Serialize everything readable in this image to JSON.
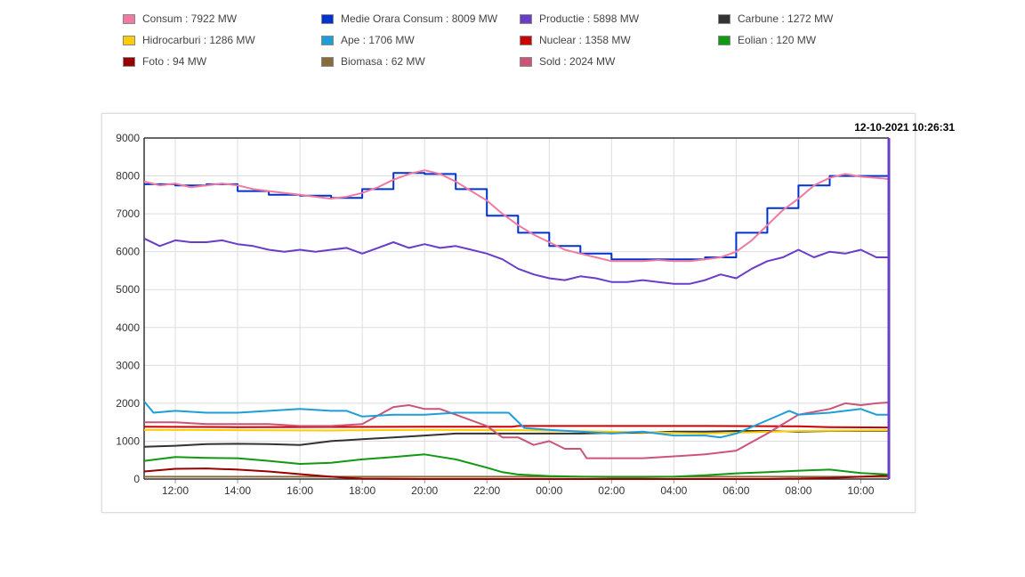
{
  "legend": [
    {
      "label": "Consum : 7922 MW",
      "color": "#f07aa0"
    },
    {
      "label": "Medie Orara Consum : 8009 MW",
      "color": "#0033cc"
    },
    {
      "label": "Productie : 5898 MW",
      "color": "#6a3dc8"
    },
    {
      "label": "Carbune : 1272 MW",
      "color": "#333333"
    },
    {
      "label": "Hidrocarburi : 1286 MW",
      "color": "#ffcc00"
    },
    {
      "label": "Ape : 1706 MW",
      "color": "#1e9ed8"
    },
    {
      "label": "Nuclear : 1358 MW",
      "color": "#cc0000"
    },
    {
      "label": "Eolian : 120 MW",
      "color": "#119911"
    },
    {
      "label": "Foto : 94 MW",
      "color": "#990000"
    },
    {
      "label": "Biomasa : 62 MW",
      "color": "#8b6a3e"
    },
    {
      "label": "Sold : 2024 MW",
      "color": "#cc5577"
    }
  ],
  "timestamp": "12-10-2021 10:26:31",
  "chart_data": {
    "type": "line",
    "xlabel": "",
    "ylabel": "",
    "ylim": [
      0,
      9000
    ],
    "xlim": [
      11,
      34.9
    ],
    "yticks": [
      "0",
      "1000",
      "2000",
      "3000",
      "4000",
      "5000",
      "6000",
      "7000",
      "8000",
      "9000"
    ],
    "xticks": [
      {
        "x": 12,
        "label": "12:00"
      },
      {
        "x": 14,
        "label": "14:00"
      },
      {
        "x": 16,
        "label": "16:00"
      },
      {
        "x": 18,
        "label": "18:00"
      },
      {
        "x": 20,
        "label": "20:00"
      },
      {
        "x": 22,
        "label": "22:00"
      },
      {
        "x": 24,
        "label": "00:00"
      },
      {
        "x": 26,
        "label": "02:00"
      },
      {
        "x": 28,
        "label": "04:00"
      },
      {
        "x": 30,
        "label": "06:00"
      },
      {
        "x": 32,
        "label": "08:00"
      },
      {
        "x": 34,
        "label": "10:00"
      }
    ],
    "grid": true,
    "legend_position": "top",
    "series": [
      {
        "name": "Consum : 7922 MW",
        "color": "#f07aa0",
        "step": false,
        "points": [
          [
            11,
            7850
          ],
          [
            11.5,
            7750
          ],
          [
            12,
            7800
          ],
          [
            12.5,
            7700
          ],
          [
            13,
            7750
          ],
          [
            13.5,
            7800
          ],
          [
            14,
            7750
          ],
          [
            14.5,
            7650
          ],
          [
            15,
            7600
          ],
          [
            15.5,
            7550
          ],
          [
            16,
            7500
          ],
          [
            16.5,
            7450
          ],
          [
            17,
            7400
          ],
          [
            17.5,
            7450
          ],
          [
            18,
            7550
          ],
          [
            18.5,
            7700
          ],
          [
            19,
            7900
          ],
          [
            19.5,
            8050
          ],
          [
            20,
            8150
          ],
          [
            20.5,
            8050
          ],
          [
            21,
            7850
          ],
          [
            21.5,
            7600
          ],
          [
            22,
            7350
          ],
          [
            22.5,
            7000
          ],
          [
            23,
            6700
          ],
          [
            23.5,
            6450
          ],
          [
            24,
            6250
          ],
          [
            24.5,
            6050
          ],
          [
            25,
            5950
          ],
          [
            25.5,
            5850
          ],
          [
            26,
            5750
          ],
          [
            26.5,
            5750
          ],
          [
            27,
            5750
          ],
          [
            27.5,
            5780
          ],
          [
            28,
            5750
          ],
          [
            28.5,
            5750
          ],
          [
            29,
            5800
          ],
          [
            29.5,
            5850
          ],
          [
            30,
            6000
          ],
          [
            30.5,
            6300
          ],
          [
            31,
            6700
          ],
          [
            31.5,
            7100
          ],
          [
            32,
            7400
          ],
          [
            32.5,
            7750
          ],
          [
            33,
            7950
          ],
          [
            33.5,
            8050
          ],
          [
            34,
            7980
          ],
          [
            34.5,
            7950
          ],
          [
            34.9,
            7920
          ]
        ]
      },
      {
        "name": "Medie Orara Consum : 8009 MW",
        "color": "#0033cc",
        "step": true,
        "points": [
          [
            11,
            7780
          ],
          [
            12,
            7750
          ],
          [
            13,
            7780
          ],
          [
            14,
            7600
          ],
          [
            15,
            7500
          ],
          [
            16,
            7480
          ],
          [
            17,
            7420
          ],
          [
            18,
            7650
          ],
          [
            19,
            8080
          ],
          [
            20,
            8050
          ],
          [
            21,
            7650
          ],
          [
            22,
            6950
          ],
          [
            23,
            6500
          ],
          [
            24,
            6150
          ],
          [
            25,
            5950
          ],
          [
            26,
            5800
          ],
          [
            27,
            5800
          ],
          [
            28,
            5800
          ],
          [
            29,
            5850
          ],
          [
            30,
            6500
          ],
          [
            31,
            7150
          ],
          [
            32,
            7750
          ],
          [
            33,
            8000
          ],
          [
            34,
            8000
          ],
          [
            34.9,
            8000
          ]
        ]
      },
      {
        "name": "Productie : 5898 MW",
        "color": "#6a3dc8",
        "step": false,
        "points": [
          [
            11,
            6350
          ],
          [
            11.5,
            6150
          ],
          [
            12,
            6300
          ],
          [
            12.5,
            6250
          ],
          [
            13,
            6250
          ],
          [
            13.5,
            6300
          ],
          [
            14,
            6200
          ],
          [
            14.5,
            6150
          ],
          [
            15,
            6050
          ],
          [
            15.5,
            6000
          ],
          [
            16,
            6050
          ],
          [
            16.5,
            6000
          ],
          [
            17,
            6050
          ],
          [
            17.5,
            6100
          ],
          [
            18,
            5950
          ],
          [
            18.5,
            6100
          ],
          [
            19,
            6250
          ],
          [
            19.5,
            6100
          ],
          [
            20,
            6200
          ],
          [
            20.5,
            6100
          ],
          [
            21,
            6150
          ],
          [
            21.5,
            6050
          ],
          [
            22,
            5950
          ],
          [
            22.5,
            5800
          ],
          [
            23,
            5550
          ],
          [
            23.5,
            5400
          ],
          [
            24,
            5300
          ],
          [
            24.5,
            5250
          ],
          [
            25,
            5350
          ],
          [
            25.5,
            5300
          ],
          [
            26,
            5200
          ],
          [
            26.5,
            5200
          ],
          [
            27,
            5250
          ],
          [
            27.5,
            5200
          ],
          [
            28,
            5150
          ],
          [
            28.5,
            5150
          ],
          [
            29,
            5250
          ],
          [
            29.5,
            5400
          ],
          [
            30,
            5300
          ],
          [
            30.5,
            5550
          ],
          [
            31,
            5750
          ],
          [
            31.5,
            5850
          ],
          [
            32,
            6050
          ],
          [
            32.5,
            5850
          ],
          [
            33,
            6000
          ],
          [
            33.5,
            5950
          ],
          [
            34,
            6050
          ],
          [
            34.5,
            5850
          ],
          [
            34.9,
            5850
          ]
        ]
      },
      {
        "name": "Ape : 1706 MW",
        "color": "#1e9ed8",
        "step": false,
        "points": [
          [
            11,
            2050
          ],
          [
            11.3,
            1750
          ],
          [
            12,
            1800
          ],
          [
            13,
            1750
          ],
          [
            14,
            1750
          ],
          [
            15,
            1800
          ],
          [
            16,
            1850
          ],
          [
            17,
            1800
          ],
          [
            17.5,
            1800
          ],
          [
            18,
            1650
          ],
          [
            19,
            1700
          ],
          [
            20,
            1700
          ],
          [
            21,
            1750
          ],
          [
            22,
            1750
          ],
          [
            22.7,
            1750
          ],
          [
            23.2,
            1350
          ],
          [
            24,
            1300
          ],
          [
            25,
            1250
          ],
          [
            26,
            1200
          ],
          [
            27,
            1250
          ],
          [
            28,
            1150
          ],
          [
            29,
            1150
          ],
          [
            29.5,
            1100
          ],
          [
            30,
            1200
          ],
          [
            31,
            1550
          ],
          [
            31.7,
            1800
          ],
          [
            32,
            1700
          ],
          [
            33,
            1750
          ],
          [
            34,
            1850
          ],
          [
            34.5,
            1700
          ],
          [
            34.9,
            1700
          ]
        ]
      },
      {
        "name": "Sold : 2024 MW",
        "color": "#cc5577",
        "step": false,
        "points": [
          [
            11,
            1500
          ],
          [
            12,
            1500
          ],
          [
            13,
            1450
          ],
          [
            14,
            1450
          ],
          [
            15,
            1450
          ],
          [
            16,
            1400
          ],
          [
            17,
            1400
          ],
          [
            18,
            1450
          ],
          [
            19,
            1900
          ],
          [
            19.5,
            1950
          ],
          [
            20,
            1850
          ],
          [
            20.5,
            1850
          ],
          [
            21,
            1700
          ],
          [
            22,
            1400
          ],
          [
            22.5,
            1100
          ],
          [
            23,
            1100
          ],
          [
            23.5,
            900
          ],
          [
            24,
            1000
          ],
          [
            24.5,
            800
          ],
          [
            25,
            800
          ],
          [
            25.2,
            550
          ],
          [
            26,
            550
          ],
          [
            27,
            550
          ],
          [
            28,
            600
          ],
          [
            29,
            650
          ],
          [
            30,
            750
          ],
          [
            31,
            1200
          ],
          [
            32,
            1700
          ],
          [
            33,
            1850
          ],
          [
            33.5,
            2000
          ],
          [
            34,
            1950
          ],
          [
            34.5,
            2000
          ],
          [
            34.9,
            2020
          ]
        ]
      },
      {
        "name": "Nuclear : 1358 MW",
        "color": "#cc0000",
        "step": false,
        "points": [
          [
            11,
            1380
          ],
          [
            14,
            1370
          ],
          [
            17,
            1375
          ],
          [
            20,
            1380
          ],
          [
            22.8,
            1380
          ],
          [
            23,
            1400
          ],
          [
            26,
            1400
          ],
          [
            29,
            1400
          ],
          [
            32,
            1390
          ],
          [
            33,
            1370
          ],
          [
            34.9,
            1360
          ]
        ]
      },
      {
        "name": "Hidrocarburi : 1286 MW",
        "color": "#ffcc00",
        "step": false,
        "points": [
          [
            11,
            1300
          ],
          [
            14,
            1290
          ],
          [
            17,
            1280
          ],
          [
            20,
            1300
          ],
          [
            23,
            1290
          ],
          [
            26,
            1250
          ],
          [
            29,
            1200
          ],
          [
            32,
            1270
          ],
          [
            34.9,
            1286
          ]
        ]
      },
      {
        "name": "Carbune : 1272 MW",
        "color": "#333333",
        "step": false,
        "points": [
          [
            11,
            850
          ],
          [
            12,
            880
          ],
          [
            13,
            920
          ],
          [
            14,
            930
          ],
          [
            15,
            920
          ],
          [
            16,
            900
          ],
          [
            17,
            1000
          ],
          [
            18,
            1050
          ],
          [
            19,
            1100
          ],
          [
            20,
            1150
          ],
          [
            21,
            1200
          ],
          [
            22,
            1200
          ],
          [
            23,
            1200
          ],
          [
            24,
            1200
          ],
          [
            25,
            1200
          ],
          [
            26,
            1220
          ],
          [
            27,
            1220
          ],
          [
            28,
            1250
          ],
          [
            29,
            1250
          ],
          [
            30,
            1270
          ],
          [
            31,
            1270
          ],
          [
            32,
            1250
          ],
          [
            33,
            1270
          ],
          [
            34,
            1270
          ],
          [
            34.9,
            1272
          ]
        ]
      },
      {
        "name": "Eolian : 120 MW",
        "color": "#119911",
        "step": false,
        "points": [
          [
            11,
            480
          ],
          [
            12,
            580
          ],
          [
            13,
            560
          ],
          [
            14,
            550
          ],
          [
            15,
            480
          ],
          [
            16,
            400
          ],
          [
            17,
            430
          ],
          [
            18,
            520
          ],
          [
            19,
            580
          ],
          [
            20,
            650
          ],
          [
            21,
            520
          ],
          [
            22,
            300
          ],
          [
            22.5,
            180
          ],
          [
            23,
            120
          ],
          [
            24,
            80
          ],
          [
            25,
            60
          ],
          [
            26,
            50
          ],
          [
            27,
            50
          ],
          [
            28,
            60
          ],
          [
            29,
            100
          ],
          [
            30,
            150
          ],
          [
            31,
            180
          ],
          [
            32,
            220
          ],
          [
            33,
            250
          ],
          [
            34,
            160
          ],
          [
            34.9,
            120
          ]
        ]
      },
      {
        "name": "Foto : 94 MW",
        "color": "#990000",
        "step": false,
        "points": [
          [
            11,
            200
          ],
          [
            12,
            270
          ],
          [
            13,
            280
          ],
          [
            14,
            250
          ],
          [
            15,
            200
          ],
          [
            16,
            130
          ],
          [
            17,
            60
          ],
          [
            18,
            10
          ],
          [
            20,
            0
          ],
          [
            24,
            0
          ],
          [
            28,
            0
          ],
          [
            31,
            0
          ],
          [
            32,
            10
          ],
          [
            33,
            30
          ],
          [
            34,
            60
          ],
          [
            34.9,
            94
          ]
        ]
      },
      {
        "name": "Biomasa : 62 MW",
        "color": "#8b6a3e",
        "step": false,
        "points": [
          [
            11,
            60
          ],
          [
            20,
            60
          ],
          [
            28,
            60
          ],
          [
            34.9,
            62
          ]
        ]
      }
    ]
  }
}
